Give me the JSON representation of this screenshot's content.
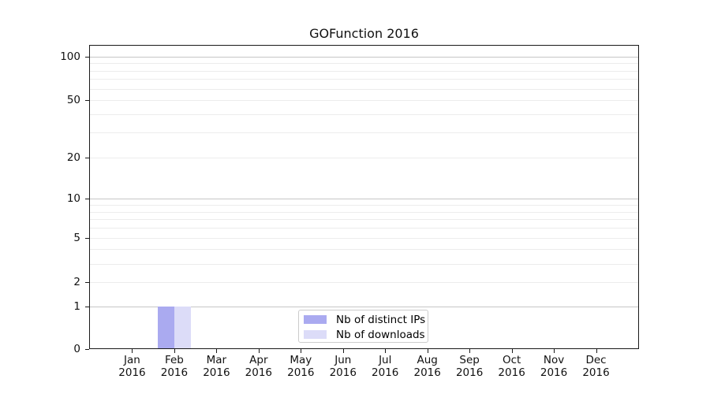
{
  "title": "GOFunction 2016",
  "chart_data": {
    "type": "bar",
    "title": "GOFunction 2016",
    "x_months": [
      "Jan",
      "Feb",
      "Mar",
      "Apr",
      "May",
      "Jun",
      "Jul",
      "Aug",
      "Sep",
      "Oct",
      "Nov",
      "Dec"
    ],
    "x_year": "2016",
    "series": [
      {
        "name": "Nb of distinct IPs",
        "color": "#aaaaf0",
        "values": [
          0,
          1,
          0,
          0,
          0,
          0,
          0,
          0,
          0,
          0,
          0,
          0
        ]
      },
      {
        "name": "Nb of downloads",
        "color": "#dcdcf8",
        "values": [
          0,
          1,
          0,
          0,
          0,
          0,
          0,
          0,
          0,
          0,
          0,
          0
        ]
      }
    ],
    "y_axis": {
      "scale": "log10(1+value)",
      "tick_values": [
        0,
        1,
        2,
        5,
        10,
        20,
        50,
        100
      ],
      "tick_labels": [
        "0",
        "1",
        "2",
        "5",
        "10",
        "20",
        "50",
        "100"
      ],
      "major_gridlines": [
        1,
        10,
        100
      ],
      "minor_gridlines": [
        2,
        3,
        4,
        5,
        6,
        7,
        8,
        9,
        20,
        30,
        40,
        50,
        60,
        70,
        80,
        90
      ],
      "ylim": [
        0,
        117
      ]
    },
    "legend": {
      "entries": [
        "Nb of distinct IPs",
        "Nb of downloads"
      ],
      "location": "lower center"
    },
    "colors": {
      "grid_major": "#c6c6c6",
      "grid_minor": "#ececec",
      "spine": "#1a1a1a",
      "background": "#ffffff"
    }
  }
}
